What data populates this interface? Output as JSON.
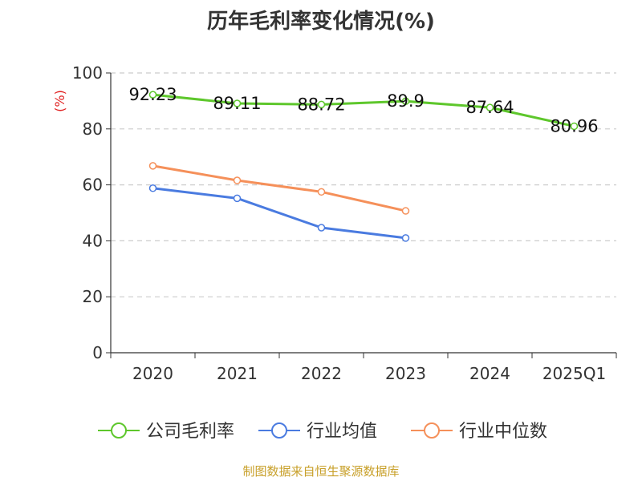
{
  "title": "历年毛利率变化情况(%)",
  "unit_label": "(%)",
  "source": "制图数据来自恒生聚源数据库",
  "colors": {
    "company": "#5ec72c",
    "industry_avg": "#4a7be0",
    "industry_median": "#f5905a",
    "grid": "#cccccc",
    "axis": "#333333",
    "unit": "#e02020"
  },
  "chart_data": {
    "type": "line",
    "categories": [
      "2020",
      "2021",
      "2022",
      "2023",
      "2024",
      "2025Q1"
    ],
    "ylim": [
      0,
      100
    ],
    "yticks": [
      "0",
      "20",
      "40",
      "60",
      "80",
      "100"
    ],
    "ylabel": "(%)",
    "grid": "horizontal-dashed",
    "legend_position": "bottom",
    "series": [
      {
        "name": "公司毛利率",
        "values": [
          92.23,
          89.11,
          88.72,
          89.9,
          87.64,
          80.96
        ],
        "labels": [
          "92.23",
          "89.11",
          "88.72",
          "89.9",
          "87.64",
          "80.96"
        ]
      },
      {
        "name": "行业均值",
        "values": [
          58.8,
          55.2,
          44.7,
          41.0,
          null,
          null
        ]
      },
      {
        "name": "行业中位数",
        "values": [
          66.8,
          61.6,
          57.5,
          50.7,
          null,
          null
        ]
      }
    ]
  }
}
